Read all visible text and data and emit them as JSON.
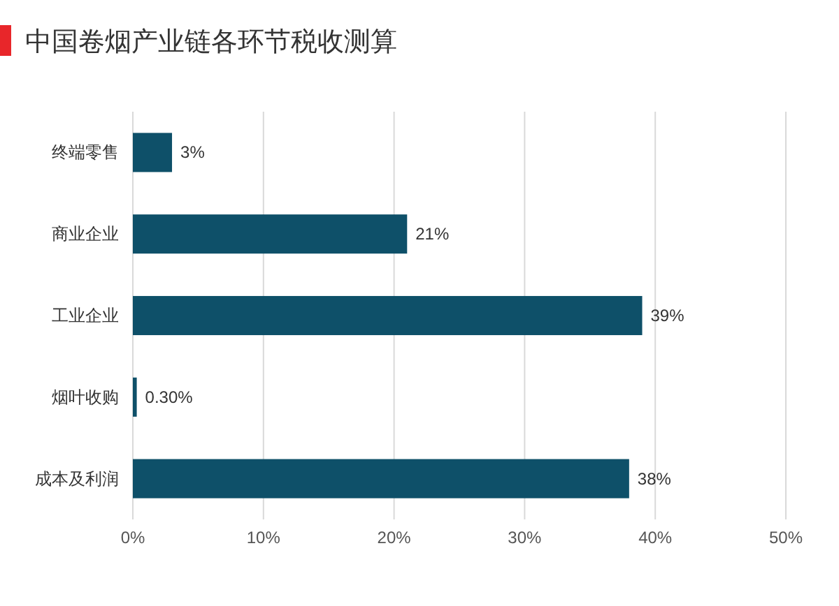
{
  "chart_data": {
    "type": "bar",
    "orientation": "horizontal",
    "title": "中国卷烟产业链各环节税收测算",
    "categories": [
      "终端零售",
      "商业企业",
      "工业企业",
      "烟叶收购",
      "成本及利润"
    ],
    "values": [
      3,
      21,
      39,
      0.3,
      38
    ],
    "value_labels": [
      "3%",
      "21%",
      "39%",
      "0.30%",
      "38%"
    ],
    "color": "#0e5069",
    "xlim": [
      0,
      50
    ],
    "xticks": [
      {
        "value": 0,
        "label": "0%"
      },
      {
        "value": 10,
        "label": "10%"
      },
      {
        "value": 20,
        "label": "20%"
      },
      {
        "value": 30,
        "label": "30%"
      },
      {
        "value": 40,
        "label": "40%"
      },
      {
        "value": 50,
        "label": "50%"
      }
    ],
    "grid": "x"
  }
}
